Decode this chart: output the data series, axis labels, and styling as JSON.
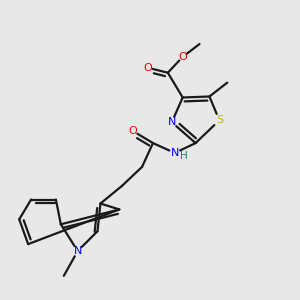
{
  "bg_color": "#e8e8e8",
  "bond_color": "#1a1a1a",
  "atom_colors": {
    "N": "#0000ee",
    "O": "#ee0000",
    "S": "#bbbb00",
    "H": "#008888",
    "C": "#1a1a1a"
  },
  "figsize": [
    3.0,
    3.0
  ],
  "dpi": 100
}
